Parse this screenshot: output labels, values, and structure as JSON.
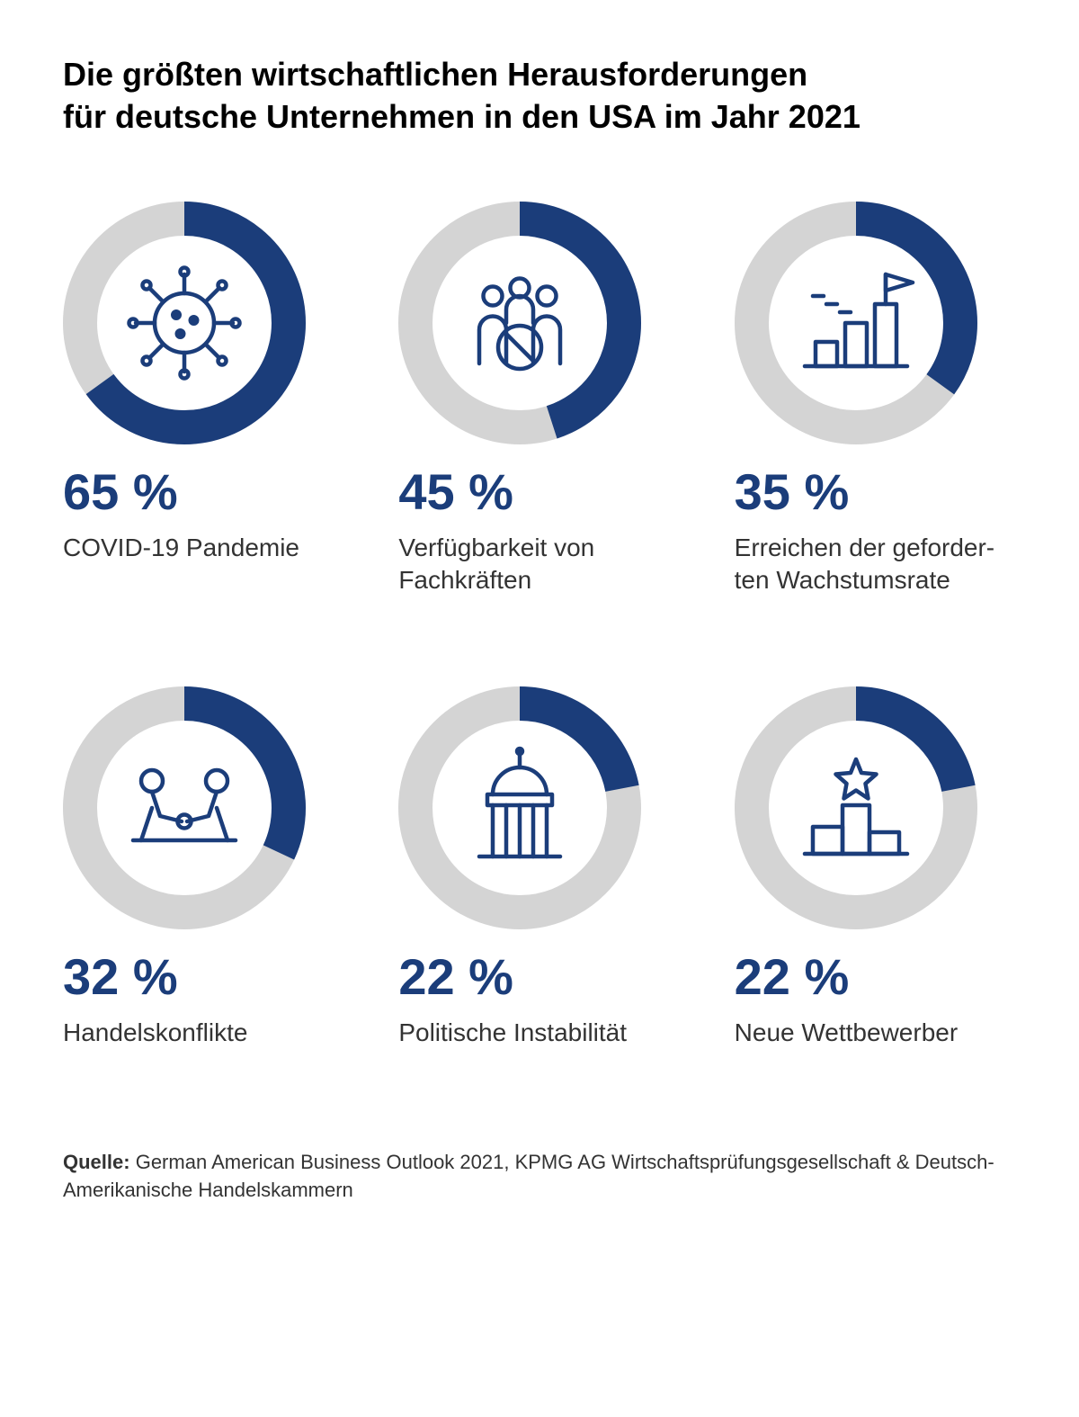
{
  "title_line1": "Die größten wirtschaftlichen Herausforderungen",
  "title_line2": "für deutsche Unternehmen in den USA im Jahr 2021",
  "colors": {
    "ring_fill": "#1b3d7a",
    "ring_bg": "#d4d4d4",
    "pct_text": "#1b3d7a",
    "label_text": "#333333",
    "icon_stroke": "#1b3d7a"
  },
  "ring": {
    "outer_radius": 135,
    "inner_radius": 97
  },
  "items": [
    {
      "pct": 65,
      "pct_text": "65 %",
      "label": "COVID-19 Pandemie",
      "icon": "virus"
    },
    {
      "pct": 45,
      "pct_text": "45 %",
      "label": "Verfügbarkeit von Fachkräften",
      "icon": "people"
    },
    {
      "pct": 35,
      "pct_text": "35 %",
      "label": "Erreichen der geforder-\nten Wachstumsrate",
      "icon": "growth"
    },
    {
      "pct": 32,
      "pct_text": "32 %",
      "label": "Handelskonflikte",
      "icon": "armwrestle"
    },
    {
      "pct": 22,
      "pct_text": "22 %",
      "label": "Politische Instabilität",
      "icon": "capitol"
    },
    {
      "pct": 22,
      "pct_text": "22 %",
      "label": "Neue Wettbewerber",
      "icon": "podium"
    }
  ],
  "source_label": "Quelle:",
  "source_text": "German American Business Outlook 2021, KPMG AG Wirtschaftsprüfungsgesellschaft & Deutsch-Amerikanische Handelskammern"
}
